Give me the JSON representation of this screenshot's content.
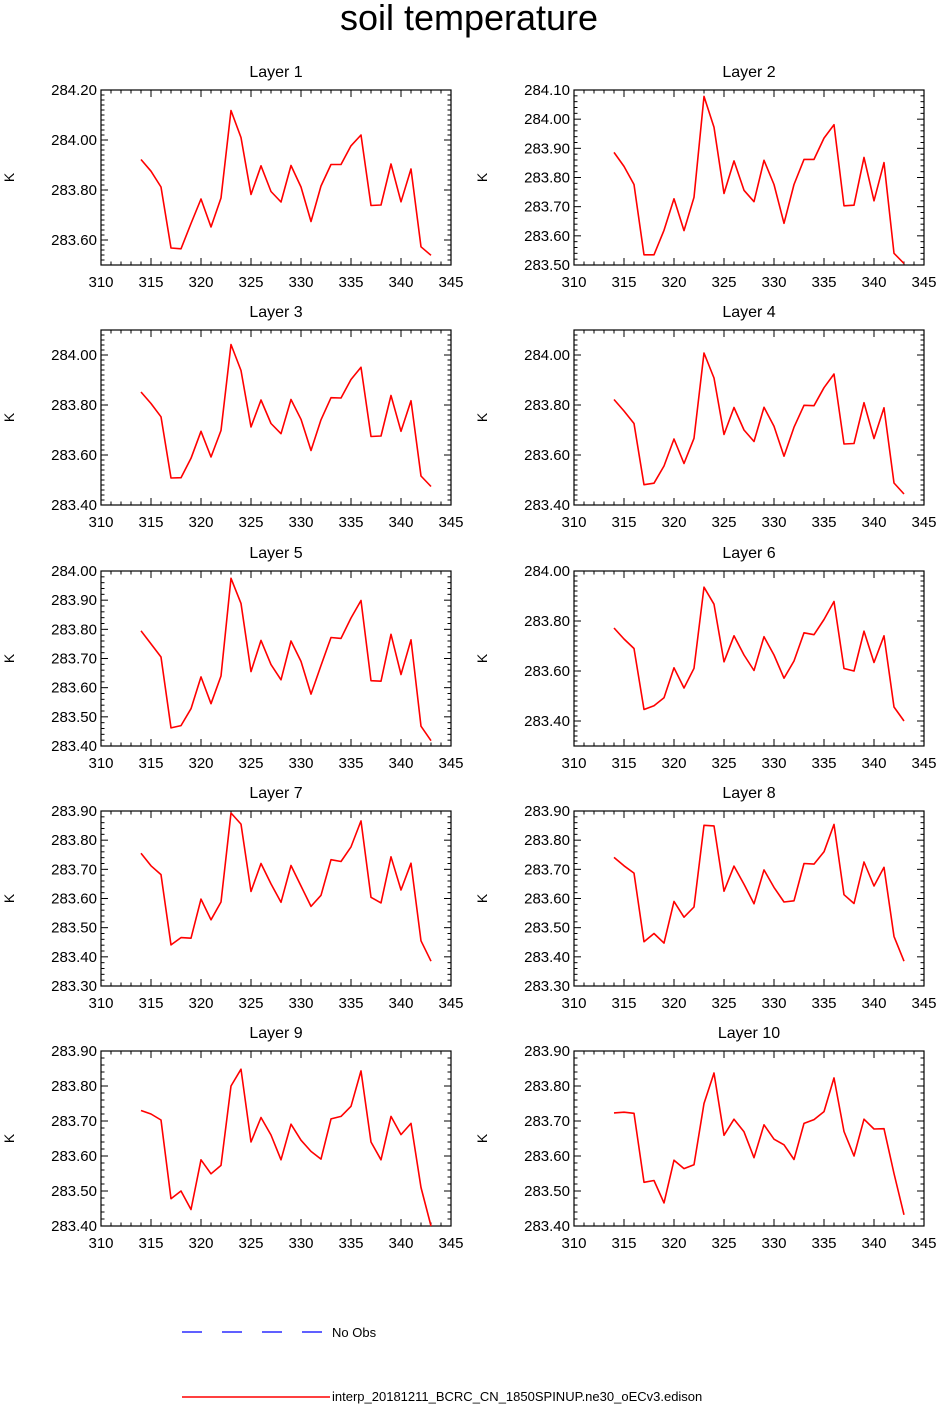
{
  "figure": {
    "title": "soil temperature"
  },
  "chart_data": [
    {
      "type": "line",
      "title": "Layer 1",
      "xlabel": "",
      "ylabel": "K",
      "xlim": [
        310,
        345
      ],
      "ylim": [
        283.5,
        284.2
      ],
      "xticks": [
        310,
        315,
        320,
        325,
        330,
        335,
        340,
        345
      ],
      "yticks": [
        283.6,
        283.8,
        284.0,
        284.2
      ],
      "ytick_labels": [
        "283.60",
        "283.80",
        "284.00",
        "284.20"
      ],
      "x": [
        314,
        315,
        316,
        317,
        318,
        319,
        320,
        321,
        322,
        323,
        324,
        325,
        326,
        327,
        328,
        329,
        330,
        331,
        332,
        333,
        334,
        335,
        336,
        337,
        338,
        339,
        340,
        341,
        342,
        343
      ],
      "series": [
        {
          "name": "interp_20181211_BCRC_CN_1850SPINUP.ne30_oECv3.edison",
          "color": "#ff0000",
          "values": [
            283.922,
            283.875,
            283.812,
            283.568,
            283.565,
            283.666,
            283.764,
            283.652,
            283.768,
            284.118,
            284.01,
            283.782,
            283.897,
            283.794,
            283.752,
            283.898,
            283.812,
            283.674,
            283.816,
            283.902,
            283.902,
            283.977,
            284.02,
            283.738,
            283.74,
            283.904,
            283.753,
            283.884,
            283.573,
            283.539
          ]
        }
      ]
    },
    {
      "type": "line",
      "title": "Layer 2",
      "xlabel": "",
      "ylabel": "K",
      "xlim": [
        310,
        345
      ],
      "ylim": [
        283.5,
        284.1
      ],
      "xticks": [
        310,
        315,
        320,
        325,
        330,
        335,
        340,
        345
      ],
      "yticks": [
        283.5,
        283.6,
        283.7,
        283.8,
        283.9,
        284.0,
        284.1
      ],
      "ytick_labels": [
        "283.50",
        "283.60",
        "283.70",
        "283.80",
        "283.90",
        "284.00",
        "284.10"
      ],
      "x": [
        314,
        315,
        316,
        317,
        318,
        319,
        320,
        321,
        322,
        323,
        324,
        325,
        326,
        327,
        328,
        329,
        330,
        331,
        332,
        333,
        334,
        335,
        336,
        337,
        338,
        339,
        340,
        341,
        342,
        343
      ],
      "series": [
        {
          "name": "interp_20181211_BCRC_CN_1850SPINUP.ne30_oECv3.edison",
          "color": "#ff0000",
          "values": [
            283.886,
            283.838,
            283.776,
            283.535,
            283.535,
            283.619,
            283.727,
            283.618,
            283.732,
            284.078,
            283.972,
            283.745,
            283.857,
            283.756,
            283.717,
            283.859,
            283.776,
            283.643,
            283.776,
            283.862,
            283.862,
            283.935,
            283.981,
            283.703,
            283.705,
            283.869,
            283.72,
            283.851,
            283.54,
            283.505
          ]
        }
      ]
    },
    {
      "type": "line",
      "title": "Layer 3",
      "xlabel": "",
      "ylabel": "K",
      "xlim": [
        310,
        345
      ],
      "ylim": [
        283.4,
        284.1
      ],
      "xticks": [
        310,
        315,
        320,
        325,
        330,
        335,
        340,
        345
      ],
      "yticks": [
        283.4,
        283.6,
        283.8,
        284.0
      ],
      "ytick_labels": [
        "283.40",
        "283.60",
        "283.80",
        "284.00"
      ],
      "x": [
        314,
        315,
        316,
        317,
        318,
        319,
        320,
        321,
        322,
        323,
        324,
        325,
        326,
        327,
        328,
        329,
        330,
        331,
        332,
        333,
        334,
        335,
        336,
        337,
        338,
        339,
        340,
        341,
        342,
        343
      ],
      "series": [
        {
          "name": "interp_20181211_BCRC_CN_1850SPINUP.ne30_oECv3.edison",
          "color": "#ff0000",
          "values": [
            283.852,
            283.806,
            283.753,
            283.508,
            283.509,
            283.587,
            283.695,
            283.592,
            283.698,
            284.042,
            283.938,
            283.712,
            283.82,
            283.726,
            283.685,
            283.822,
            283.743,
            283.618,
            283.741,
            283.829,
            283.828,
            283.902,
            283.951,
            283.674,
            283.676,
            283.838,
            283.695,
            283.817,
            283.516,
            283.474
          ]
        }
      ]
    },
    {
      "type": "line",
      "title": "Layer 4",
      "xlabel": "",
      "ylabel": "K",
      "xlim": [
        310,
        345
      ],
      "ylim": [
        283.4,
        284.1
      ],
      "xticks": [
        310,
        315,
        320,
        325,
        330,
        335,
        340,
        345
      ],
      "yticks": [
        283.4,
        283.6,
        283.8,
        284.0
      ],
      "ytick_labels": [
        "283.40",
        "283.60",
        "283.80",
        "284.00"
      ],
      "x": [
        314,
        315,
        316,
        317,
        318,
        319,
        320,
        321,
        322,
        323,
        324,
        325,
        326,
        327,
        328,
        329,
        330,
        331,
        332,
        333,
        334,
        335,
        336,
        337,
        338,
        339,
        340,
        341,
        342,
        343
      ],
      "series": [
        {
          "name": "interp_20181211_BCRC_CN_1850SPINUP.ne30_oECv3.edison",
          "color": "#ff0000",
          "values": [
            283.822,
            283.776,
            283.726,
            283.481,
            283.487,
            283.556,
            283.664,
            283.566,
            283.667,
            284.008,
            283.908,
            283.682,
            283.79,
            283.7,
            283.654,
            283.791,
            283.715,
            283.595,
            283.711,
            283.799,
            283.797,
            283.869,
            283.924,
            283.644,
            283.646,
            283.809,
            283.666,
            283.789,
            283.488,
            283.444
          ]
        }
      ]
    },
    {
      "type": "line",
      "title": "Layer 5",
      "xlabel": "",
      "ylabel": "K",
      "xlim": [
        310,
        345
      ],
      "ylim": [
        283.4,
        284.0
      ],
      "xticks": [
        310,
        315,
        320,
        325,
        330,
        335,
        340,
        345
      ],
      "yticks": [
        283.4,
        283.5,
        283.6,
        283.7,
        283.8,
        283.9,
        284.0
      ],
      "ytick_labels": [
        "283.40",
        "283.50",
        "283.60",
        "283.70",
        "283.80",
        "283.90",
        "284.00"
      ],
      "x": [
        314,
        315,
        316,
        317,
        318,
        319,
        320,
        321,
        322,
        323,
        324,
        325,
        326,
        327,
        328,
        329,
        330,
        331,
        332,
        333,
        334,
        335,
        336,
        337,
        338,
        339,
        340,
        341,
        342,
        343
      ],
      "series": [
        {
          "name": "interp_20181211_BCRC_CN_1850SPINUP.ne30_oECv3.edison",
          "color": "#ff0000",
          "values": [
            283.795,
            283.75,
            283.705,
            283.462,
            283.47,
            283.528,
            283.637,
            283.545,
            283.64,
            283.975,
            283.889,
            283.655,
            283.762,
            283.679,
            283.627,
            283.76,
            283.69,
            283.578,
            283.676,
            283.772,
            283.769,
            283.839,
            283.899,
            283.624,
            283.622,
            283.783,
            283.645,
            283.764,
            283.468,
            283.418
          ]
        }
      ]
    },
    {
      "type": "line",
      "title": "Layer 6",
      "xlabel": "",
      "ylabel": "K",
      "xlim": [
        310,
        345
      ],
      "ylim": [
        283.3,
        284.0
      ],
      "xticks": [
        310,
        315,
        320,
        325,
        330,
        335,
        340,
        345
      ],
      "yticks": [
        283.4,
        283.6,
        283.8,
        284.0
      ],
      "ytick_labels": [
        "283.40",
        "283.60",
        "283.80",
        "284.00"
      ],
      "x": [
        314,
        315,
        316,
        317,
        318,
        319,
        320,
        321,
        322,
        323,
        324,
        325,
        326,
        327,
        328,
        329,
        330,
        331,
        332,
        333,
        334,
        335,
        336,
        337,
        338,
        339,
        340,
        341,
        342,
        343
      ],
      "series": [
        {
          "name": "interp_20181211_BCRC_CN_1850SPINUP.ne30_oECv3.edison",
          "color": "#ff0000",
          "values": [
            283.772,
            283.728,
            283.69,
            283.446,
            283.461,
            283.493,
            283.613,
            283.532,
            283.611,
            283.935,
            283.867,
            283.637,
            283.741,
            283.664,
            283.602,
            283.737,
            283.664,
            283.571,
            283.64,
            283.753,
            283.745,
            283.806,
            283.878,
            283.61,
            283.6,
            283.759,
            283.634,
            283.741,
            283.456,
            283.4
          ]
        }
      ]
    },
    {
      "type": "line",
      "title": "Layer 7",
      "xlabel": "",
      "ylabel": "K",
      "xlim": [
        310,
        345
      ],
      "ylim": [
        283.3,
        283.9
      ],
      "xticks": [
        310,
        315,
        320,
        325,
        330,
        335,
        340,
        345
      ],
      "yticks": [
        283.3,
        283.4,
        283.5,
        283.6,
        283.7,
        283.8,
        283.9
      ],
      "ytick_labels": [
        "283.30",
        "283.40",
        "283.50",
        "283.60",
        "283.70",
        "283.80",
        "283.90"
      ],
      "x": [
        314,
        315,
        316,
        317,
        318,
        319,
        320,
        321,
        322,
        323,
        324,
        325,
        326,
        327,
        328,
        329,
        330,
        331,
        332,
        333,
        334,
        335,
        336,
        337,
        338,
        339,
        340,
        341,
        342,
        343
      ],
      "series": [
        {
          "name": "interp_20181211_BCRC_CN_1850SPINUP.ne30_oECv3.edison",
          "color": "#ff0000",
          "values": [
            283.755,
            283.712,
            283.682,
            283.441,
            283.466,
            283.464,
            283.598,
            283.527,
            283.588,
            283.893,
            283.855,
            283.624,
            283.72,
            283.65,
            283.587,
            283.713,
            283.643,
            283.573,
            283.611,
            283.733,
            283.727,
            283.777,
            283.866,
            283.604,
            283.585,
            283.743,
            283.629,
            283.721,
            283.455,
            283.385
          ]
        }
      ]
    },
    {
      "type": "line",
      "title": "Layer 8",
      "xlabel": "",
      "ylabel": "K",
      "xlim": [
        310,
        345
      ],
      "ylim": [
        283.3,
        283.9
      ],
      "xticks": [
        310,
        315,
        320,
        325,
        330,
        335,
        340,
        345
      ],
      "yticks": [
        283.3,
        283.4,
        283.5,
        283.6,
        283.7,
        283.8,
        283.9
      ],
      "ytick_labels": [
        "283.30",
        "283.40",
        "283.50",
        "283.60",
        "283.70",
        "283.80",
        "283.90"
      ],
      "x": [
        314,
        315,
        316,
        317,
        318,
        319,
        320,
        321,
        322,
        323,
        324,
        325,
        326,
        327,
        328,
        329,
        330,
        331,
        332,
        333,
        334,
        335,
        336,
        337,
        338,
        339,
        340,
        341,
        342,
        343
      ],
      "series": [
        {
          "name": "interp_20181211_BCRC_CN_1850SPINUP.ne30_oECv3.edison",
          "color": "#ff0000",
          "values": [
            283.741,
            283.712,
            283.687,
            283.452,
            283.48,
            283.447,
            283.59,
            283.536,
            283.571,
            283.851,
            283.849,
            283.625,
            283.711,
            283.649,
            283.582,
            283.698,
            283.638,
            283.588,
            283.592,
            283.72,
            283.718,
            283.76,
            283.854,
            283.613,
            283.583,
            283.725,
            283.643,
            283.707,
            283.47,
            283.385
          ]
        }
      ]
    },
    {
      "type": "line",
      "title": "Layer 9",
      "xlabel": "",
      "ylabel": "K",
      "xlim": [
        310,
        345
      ],
      "ylim": [
        283.4,
        283.9
      ],
      "xticks": [
        310,
        315,
        320,
        325,
        330,
        335,
        340,
        345
      ],
      "yticks": [
        283.4,
        283.5,
        283.6,
        283.7,
        283.8,
        283.9
      ],
      "ytick_labels": [
        "283.40",
        "283.50",
        "283.60",
        "283.70",
        "283.80",
        "283.90"
      ],
      "x": [
        314,
        315,
        316,
        317,
        318,
        319,
        320,
        321,
        322,
        323,
        324,
        325,
        326,
        327,
        328,
        329,
        330,
        331,
        332,
        333,
        334,
        335,
        336,
        337,
        338,
        339,
        340,
        341,
        342,
        343
      ],
      "series": [
        {
          "name": "interp_20181211_BCRC_CN_1850SPINUP.ne30_oECv3.edison",
          "color": "#ff0000",
          "values": [
            283.73,
            283.72,
            283.703,
            283.478,
            283.5,
            283.447,
            283.589,
            283.549,
            283.573,
            283.8,
            283.848,
            283.64,
            283.71,
            283.66,
            283.589,
            283.691,
            283.645,
            283.613,
            283.591,
            283.706,
            283.713,
            283.742,
            283.843,
            283.64,
            283.589,
            283.713,
            283.661,
            283.693,
            283.51,
            283.4
          ]
        }
      ]
    },
    {
      "type": "line",
      "title": "Layer 10",
      "xlabel": "",
      "ylabel": "K",
      "xlim": [
        310,
        345
      ],
      "ylim": [
        283.4,
        283.9
      ],
      "xticks": [
        310,
        315,
        320,
        325,
        330,
        335,
        340,
        345
      ],
      "yticks": [
        283.4,
        283.5,
        283.6,
        283.7,
        283.8,
        283.9
      ],
      "ytick_labels": [
        "283.40",
        "283.50",
        "283.60",
        "283.70",
        "283.80",
        "283.90"
      ],
      "x": [
        314,
        315,
        316,
        317,
        318,
        319,
        320,
        321,
        322,
        323,
        324,
        325,
        326,
        327,
        328,
        329,
        330,
        331,
        332,
        333,
        334,
        335,
        336,
        337,
        338,
        339,
        340,
        341,
        342,
        343
      ],
      "series": [
        {
          "name": "interp_20181211_BCRC_CN_1850SPINUP.ne30_oECv3.edison",
          "color": "#ff0000",
          "values": [
            283.723,
            283.725,
            283.722,
            283.525,
            283.53,
            283.466,
            283.588,
            283.564,
            283.575,
            283.75,
            283.837,
            283.659,
            283.705,
            283.669,
            283.595,
            283.689,
            283.648,
            283.632,
            283.59,
            283.693,
            283.704,
            283.727,
            283.823,
            283.67,
            283.6,
            283.705,
            283.677,
            283.678,
            283.55,
            283.432
          ]
        }
      ]
    }
  ],
  "legend": {
    "items": [
      {
        "label": "No Obs",
        "color": "#0000ff",
        "style": "dashed"
      },
      {
        "label": "interp_20181211_BCRC_CN_1850SPINUP.ne30_oECv3.edison",
        "color": "#ff0000",
        "style": "solid"
      }
    ]
  }
}
